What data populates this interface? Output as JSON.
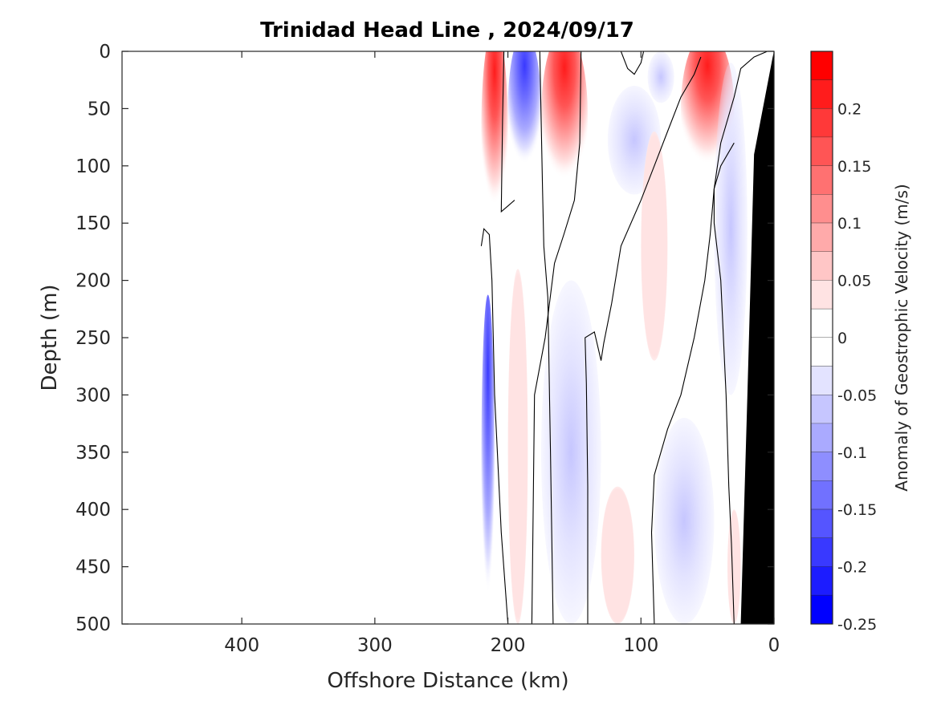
{
  "chart_data": {
    "type": "heatmap",
    "subtype": "filled-contour",
    "title": "Trinidad Head Line , 2024/09/17",
    "xlabel": "Offshore Distance (km)",
    "ylabel": "Depth (m)",
    "colorbar_label": "Anomaly of Geostrophic Velocity (m/s)",
    "xlim": [
      490,
      0
    ],
    "x_reversed": true,
    "ylim": [
      0,
      500
    ],
    "y_reversed": true,
    "x_ticks": [
      400,
      300,
      200,
      100,
      0
    ],
    "x_tick_labels": [
      "400",
      "300",
      "200",
      "100",
      "0"
    ],
    "y_ticks": [
      0,
      50,
      100,
      150,
      200,
      250,
      300,
      350,
      400,
      450,
      500
    ],
    "y_tick_labels": [
      "0",
      "50",
      "100",
      "150",
      "200",
      "250",
      "300",
      "350",
      "400",
      "450",
      "500"
    ],
    "colorbar_range": [
      -0.25,
      0.25
    ],
    "colorbar_ticks": [
      0.2,
      0.15,
      0.1,
      0.05,
      0,
      -0.05,
      -0.1,
      -0.15,
      -0.2,
      -0.25
    ],
    "colorbar_tick_labels": [
      "0.2",
      "0.15",
      "0.1",
      "0.05",
      "0",
      "-0.05",
      "-0.1",
      "-0.15",
      "-0.2",
      "-0.25"
    ],
    "colorbar_levels": [
      {
        "range": [
          0.225,
          0.25
        ],
        "color": "#ff0000"
      },
      {
        "range": [
          0.2,
          0.225
        ],
        "color": "#ff1c1c"
      },
      {
        "range": [
          0.175,
          0.2
        ],
        "color": "#ff3939"
      },
      {
        "range": [
          0.15,
          0.175
        ],
        "color": "#ff5555"
      },
      {
        "range": [
          0.125,
          0.15
        ],
        "color": "#ff7171"
      },
      {
        "range": [
          0.1,
          0.125
        ],
        "color": "#ff8e8e"
      },
      {
        "range": [
          0.075,
          0.1
        ],
        "color": "#ffaaaa"
      },
      {
        "range": [
          0.05,
          0.075
        ],
        "color": "#ffc6c6"
      },
      {
        "range": [
          0.025,
          0.05
        ],
        "color": "#ffe3e3"
      },
      {
        "range": [
          0,
          0.025
        ],
        "color": "#ffffff"
      },
      {
        "range": [
          -0.025,
          0
        ],
        "color": "#ffffff"
      },
      {
        "range": [
          -0.05,
          -0.025
        ],
        "color": "#e3e3ff"
      },
      {
        "range": [
          -0.075,
          -0.05
        ],
        "color": "#c6c6ff"
      },
      {
        "range": [
          -0.1,
          -0.075
        ],
        "color": "#aaaaff"
      },
      {
        "range": [
          -0.125,
          -0.1
        ],
        "color": "#8e8eff"
      },
      {
        "range": [
          -0.15,
          -0.125
        ],
        "color": "#7171ff"
      },
      {
        "range": [
          -0.175,
          -0.15
        ],
        "color": "#5555ff"
      },
      {
        "range": [
          -0.2,
          -0.175
        ],
        "color": "#3939ff"
      },
      {
        "range": [
          -0.225,
          -0.2
        ],
        "color": "#1c1cff"
      },
      {
        "range": [
          -0.25,
          -0.225
        ],
        "color": "#0000ff"
      }
    ],
    "data_extent_km": [
      220,
      0
    ],
    "features": [
      {
        "kind": "positive",
        "distance_km": [
          200,
          220
        ],
        "depth_m": [
          0,
          150
        ],
        "peak": 0.23
      },
      {
        "kind": "negative",
        "distance_km": [
          175,
          200
        ],
        "depth_m": [
          0,
          110
        ],
        "peak": -0.18
      },
      {
        "kind": "positive",
        "distance_km": [
          140,
          175
        ],
        "depth_m": [
          0,
          125
        ],
        "peak": 0.22
      },
      {
        "kind": "negative",
        "distance_km": [
          75,
          95
        ],
        "depth_m": [
          0,
          45
        ],
        "peak": -0.08
      },
      {
        "kind": "positive",
        "distance_km": [
          30,
          70
        ],
        "depth_m": [
          0,
          110
        ],
        "peak": 0.19
      },
      {
        "kind": "negative",
        "distance_km": [
          85,
          125
        ],
        "depth_m": [
          30,
          125
        ],
        "peak": -0.04
      },
      {
        "kind": "positive",
        "distance_km": [
          80,
          100
        ],
        "depth_m": [
          70,
          270
        ],
        "peak": 0.04
      },
      {
        "kind": "negative",
        "distance_km": [
          20,
          45
        ],
        "depth_m": [
          10,
          300
        ],
        "peak": -0.04
      },
      {
        "kind": "positive",
        "distance_km": [
          185,
          200
        ],
        "depth_m": [
          190,
          500
        ],
        "peak": 0.04
      },
      {
        "kind": "negative",
        "distance_km": [
          130,
          175
        ],
        "depth_m": [
          200,
          500
        ],
        "peak": -0.08
      },
      {
        "kind": "negative",
        "distance_km": [
          210,
          220
        ],
        "depth_m": [
          250,
          500
        ],
        "peak": -0.1
      },
      {
        "kind": "positive",
        "distance_km": [
          105,
          130
        ],
        "depth_m": [
          380,
          500
        ],
        "peak": 0.04
      },
      {
        "kind": "negative",
        "distance_km": [
          45,
          90
        ],
        "depth_m": [
          320,
          500
        ],
        "peak": -0.08
      },
      {
        "kind": "positive",
        "distance_km": [
          25,
          35
        ],
        "depth_m": [
          400,
          500
        ],
        "peak": 0.04
      }
    ],
    "bathymetry": {
      "label": "seafloor",
      "color": "#000000",
      "surface_km": 0,
      "bottom_km": 25
    }
  }
}
